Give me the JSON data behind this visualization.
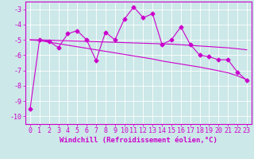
{
  "xlabel": "Windchill (Refroidissement éolien,°C)",
  "background_color": "#cce8e8",
  "grid_color": "#ffffff",
  "line_color": "#cc00cc",
  "x_values": [
    0,
    1,
    2,
    3,
    4,
    5,
    6,
    7,
    8,
    9,
    10,
    11,
    12,
    13,
    14,
    15,
    16,
    17,
    18,
    19,
    20,
    21,
    22,
    23
  ],
  "y_series1": [
    -9.5,
    -5.0,
    -5.1,
    -5.5,
    -4.6,
    -4.4,
    -5.0,
    -6.35,
    -4.5,
    -5.0,
    -3.65,
    -2.85,
    -3.55,
    -3.3,
    -5.3,
    -5.0,
    -4.15,
    -5.3,
    -6.0,
    -6.1,
    -6.3,
    -6.3,
    -7.1,
    -7.65
  ],
  "y_trend1": [
    -5.0,
    -5.0,
    -5.02,
    -5.04,
    -5.06,
    -5.08,
    -5.1,
    -5.12,
    -5.14,
    -5.16,
    -5.18,
    -5.2,
    -5.22,
    -5.24,
    -5.26,
    -5.28,
    -5.32,
    -5.36,
    -5.4,
    -5.44,
    -5.48,
    -5.52,
    -5.58,
    -5.65
  ],
  "y_trend2": [
    -5.0,
    -5.05,
    -5.15,
    -5.25,
    -5.35,
    -5.45,
    -5.55,
    -5.65,
    -5.75,
    -5.85,
    -5.95,
    -6.05,
    -6.15,
    -6.25,
    -6.38,
    -6.48,
    -6.58,
    -6.68,
    -6.78,
    -6.9,
    -7.02,
    -7.15,
    -7.35,
    -7.6
  ],
  "ylim": [
    -10.5,
    -2.5
  ],
  "xlim": [
    -0.5,
    23.5
  ],
  "yticks": [
    -10,
    -9,
    -8,
    -7,
    -6,
    -5,
    -4,
    -3
  ],
  "xticks": [
    0,
    1,
    2,
    3,
    4,
    5,
    6,
    7,
    8,
    9,
    10,
    11,
    12,
    13,
    14,
    15,
    16,
    17,
    18,
    19,
    20,
    21,
    22,
    23
  ],
  "marker": "D",
  "marker_size": 2.5,
  "line_width": 0.8,
  "xlabel_fontsize": 6.5,
  "tick_fontsize": 6.0
}
